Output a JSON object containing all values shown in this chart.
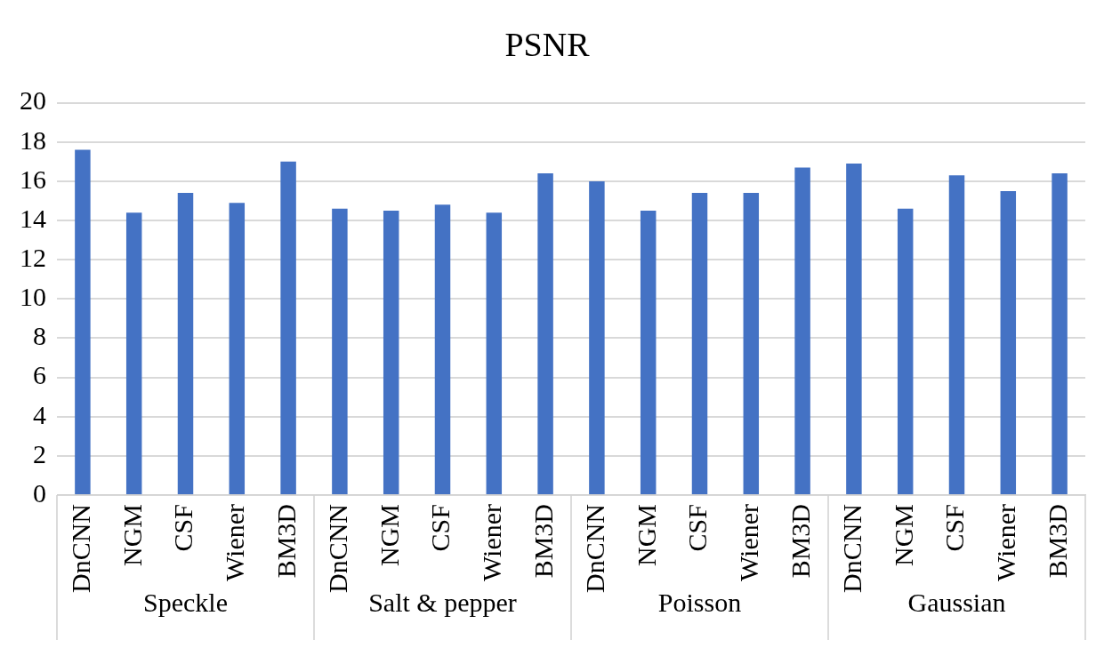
{
  "chart_data": {
    "type": "bar",
    "title": "PSNR",
    "categories": [
      "DnCNN",
      "NGM",
      "CSF",
      "Wiener",
      "BM3D",
      "DnCNN",
      "NGM",
      "CSF",
      "Wiener",
      "BM3D",
      "DnCNN",
      "NGM",
      "CSF",
      "Wiener",
      "BM3D",
      "DnCNN",
      "NGM",
      "CSF",
      "Wiener",
      "BM3D"
    ],
    "values": [
      17.6,
      14.4,
      15.4,
      14.9,
      17.0,
      14.6,
      14.5,
      14.8,
      14.4,
      16.4,
      16.0,
      14.5,
      15.4,
      15.4,
      16.7,
      16.9,
      14.6,
      16.3,
      15.5,
      16.4
    ],
    "color": "#4472c4",
    "annotations": [
      "Speckle",
      "Salt & pepper",
      "Poisson",
      "Gaussian"
    ],
    "ylim": [
      0,
      20
    ],
    "yticks": [
      0,
      2,
      4,
      6,
      8,
      10,
      12,
      14,
      16,
      18,
      20
    ],
    "grid": "y",
    "legend": false
  }
}
